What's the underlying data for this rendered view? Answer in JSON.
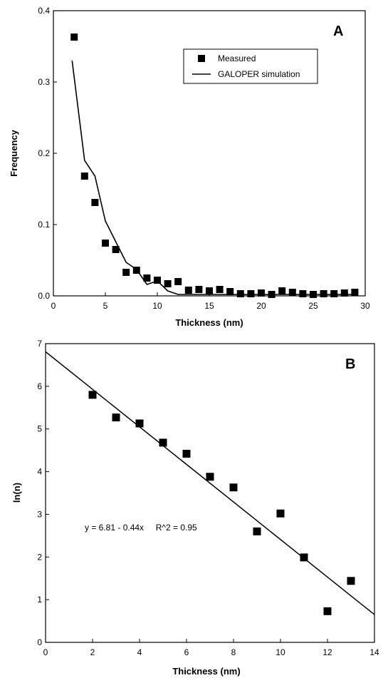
{
  "chart_data": [
    {
      "type": "scatter",
      "panel_label": "A",
      "xlabel": "Thickness  (nm)",
      "ylabel": "Frequency",
      "xlim": [
        0,
        30
      ],
      "ylim": [
        0,
        0.4
      ],
      "xticks": [
        0,
        5,
        10,
        15,
        20,
        25,
        30
      ],
      "yticks": [
        0.0,
        0.1,
        0.2,
        0.3,
        0.4
      ],
      "ytick_labels": [
        "0.0",
        "0.1",
        "0.2",
        "0.3",
        "0.4"
      ],
      "legend_position": "top-right",
      "series": [
        {
          "name": "Measured",
          "kind": "markers",
          "marker": "square",
          "x": [
            2,
            3,
            4,
            5,
            6,
            7,
            8,
            9,
            10,
            11,
            12,
            13,
            14,
            15,
            16,
            17,
            18,
            19,
            20,
            21,
            22,
            23,
            24,
            25,
            26,
            27,
            28,
            29
          ],
          "y": [
            0.363,
            0.168,
            0.131,
            0.074,
            0.065,
            0.033,
            0.036,
            0.025,
            0.022,
            0.017,
            0.02,
            0.008,
            0.009,
            0.007,
            0.009,
            0.006,
            0.003,
            0.003,
            0.004,
            0.002,
            0.007,
            0.005,
            0.003,
            0.002,
            0.003,
            0.003,
            0.004,
            0.005
          ]
        },
        {
          "name": "GALOPER simulation",
          "kind": "line",
          "x": [
            1.8,
            3,
            4,
            5,
            6,
            7,
            8,
            9,
            10,
            11,
            12,
            13,
            14,
            15,
            16,
            17,
            18,
            19,
            20,
            21,
            22,
            23,
            24,
            25,
            26,
            27,
            28,
            29
          ],
          "y": [
            0.33,
            0.19,
            0.168,
            0.105,
            0.076,
            0.047,
            0.037,
            0.016,
            0.021,
            0.007,
            0.002,
            0.002,
            0.002,
            0.002,
            0.002,
            0.002,
            0.002,
            0.002,
            0.002,
            0.002,
            0.002,
            0.002,
            0.002,
            0.002,
            0.002,
            0.002,
            0.002,
            0.002
          ]
        }
      ]
    },
    {
      "type": "scatter",
      "panel_label": "B",
      "xlabel": "Thickness  (nm)",
      "ylabel": "ln(n)",
      "xlim": [
        0,
        14
      ],
      "ylim": [
        0,
        7
      ],
      "xticks": [
        0,
        2,
        4,
        6,
        8,
        10,
        12,
        14
      ],
      "yticks": [
        0,
        1,
        2,
        3,
        4,
        5,
        6,
        7
      ],
      "annotation": "y = 6.81 - 0.44x     R^2 = 0.95",
      "series": [
        {
          "kind": "markers",
          "marker": "square",
          "x": [
            2,
            3,
            4,
            5,
            6,
            7,
            8,
            9,
            10,
            11,
            12,
            13
          ],
          "y": [
            5.8,
            5.27,
            5.13,
            4.68,
            4.42,
            3.88,
            3.63,
            2.6,
            3.02,
            1.99,
            0.73,
            1.44
          ]
        },
        {
          "kind": "fit-line",
          "intercept": 6.81,
          "slope": -0.44,
          "x": [
            0,
            14
          ]
        }
      ]
    }
  ]
}
